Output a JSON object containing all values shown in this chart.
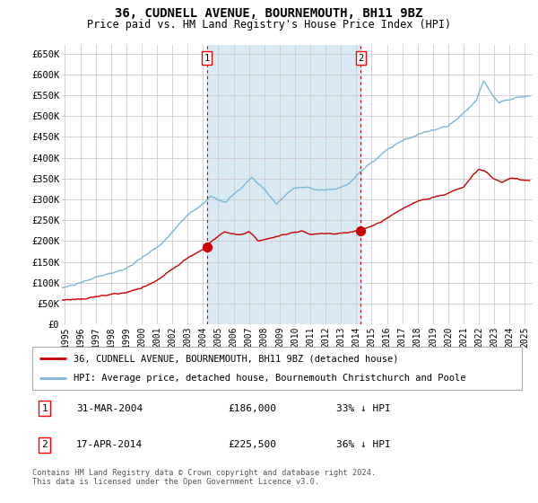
{
  "title": "36, CUDNELL AVENUE, BOURNEMOUTH, BH11 9BZ",
  "subtitle": "Price paid vs. HM Land Registry's House Price Index (HPI)",
  "legend_line1": "36, CUDNELL AVENUE, BOURNEMOUTH, BH11 9BZ (detached house)",
  "legend_line2": "HPI: Average price, detached house, Bournemouth Christchurch and Poole",
  "footnote": "Contains HM Land Registry data © Crown copyright and database right 2024.\nThis data is licensed under the Open Government Licence v3.0.",
  "sale1_date": "31-MAR-2004",
  "sale1_price": "£186,000",
  "sale1_hpi": "33% ↓ HPI",
  "sale1_year": 2004.25,
  "sale1_value": 186000,
  "sale2_date": "17-APR-2014",
  "sale2_price": "£225,500",
  "sale2_hpi": "36% ↓ HPI",
  "sale2_year": 2014.29,
  "sale2_value": 225500,
  "hpi_color": "#7ab8d9",
  "price_color": "#cc0000",
  "background_color": "#ffffff",
  "shaded_region_color": "#daeaf5",
  "grid_color": "#cccccc",
  "ylim": [
    0,
    670000
  ],
  "xlim_start": 1994.8,
  "xlim_end": 2025.5,
  "yticks": [
    0,
    50000,
    100000,
    150000,
    200000,
    250000,
    300000,
    350000,
    400000,
    450000,
    500000,
    550000,
    600000,
    650000
  ],
  "ytick_labels": [
    "£0",
    "£50K",
    "£100K",
    "£150K",
    "£200K",
    "£250K",
    "£300K",
    "£350K",
    "£400K",
    "£450K",
    "£500K",
    "£550K",
    "£600K",
    "£650K"
  ],
  "xtick_years": [
    1995,
    1996,
    1997,
    1998,
    1999,
    2000,
    2001,
    2002,
    2003,
    2004,
    2005,
    2006,
    2007,
    2008,
    2009,
    2010,
    2011,
    2012,
    2013,
    2014,
    2015,
    2016,
    2017,
    2018,
    2019,
    2020,
    2021,
    2022,
    2023,
    2024,
    2025
  ]
}
